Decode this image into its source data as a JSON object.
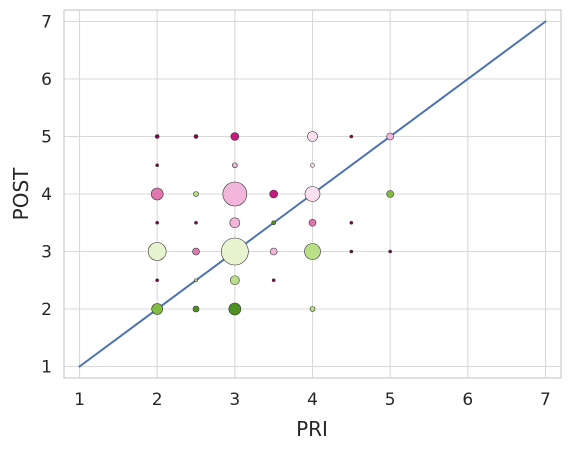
{
  "chart_data": {
    "type": "scatter",
    "xlabel": "PRI",
    "ylabel": "POST",
    "xlim": [
      0.8,
      7.2
    ],
    "ylim": [
      0.8,
      7.2
    ],
    "xticks": [
      "1",
      "2",
      "3",
      "4",
      "5",
      "6",
      "7"
    ],
    "yticks": [
      "1",
      "2",
      "3",
      "4",
      "5",
      "6",
      "7"
    ],
    "grid": true,
    "reference_line": {
      "x": [
        1,
        7
      ],
      "y": [
        1,
        7
      ],
      "color": "#4c72b0"
    },
    "colors": {
      "magenta_dark": "#8e0152",
      "magenta": "#c51b7d",
      "pink": "#de77ae",
      "light_pink": "#f1b6da",
      "pale_pink": "#fde0ef",
      "pale_green": "#e6f5d0",
      "light_green": "#b8e186",
      "green": "#7fbc41",
      "dark_green": "#4d9221"
    },
    "points": [
      {
        "x": 2,
        "y": 5,
        "size": 2,
        "color": "#8e0152"
      },
      {
        "x": 2.5,
        "y": 5,
        "size": 2,
        "color": "#8e0152"
      },
      {
        "x": 3,
        "y": 5,
        "size": 4,
        "color": "#c51b7d"
      },
      {
        "x": 4,
        "y": 5,
        "size": 5,
        "color": "#fde0ef"
      },
      {
        "x": 4.5,
        "y": 5,
        "size": 1.5,
        "color": "#8e0152"
      },
      {
        "x": 5,
        "y": 5,
        "size": 3.5,
        "color": "#f1b6da"
      },
      {
        "x": 2,
        "y": 4.5,
        "size": 1.5,
        "color": "#8e0152"
      },
      {
        "x": 3,
        "y": 4.5,
        "size": 2.5,
        "color": "#f1b6da"
      },
      {
        "x": 4,
        "y": 4.5,
        "size": 2,
        "color": "#fde0ef"
      },
      {
        "x": 2,
        "y": 4,
        "size": 6,
        "color": "#de77ae"
      },
      {
        "x": 2.5,
        "y": 4,
        "size": 2.5,
        "color": "#b8e186"
      },
      {
        "x": 3,
        "y": 4,
        "size": 12,
        "color": "#f1b6da"
      },
      {
        "x": 3.5,
        "y": 4,
        "size": 4,
        "color": "#c51b7d"
      },
      {
        "x": 4,
        "y": 4,
        "size": 7.5,
        "color": "#fde0ef"
      },
      {
        "x": 5,
        "y": 4,
        "size": 3.5,
        "color": "#7fbc41"
      },
      {
        "x": 2,
        "y": 3.5,
        "size": 1.5,
        "color": "#8e0152"
      },
      {
        "x": 2.5,
        "y": 3.5,
        "size": 1.5,
        "color": "#8e0152"
      },
      {
        "x": 3,
        "y": 3.5,
        "size": 5,
        "color": "#f1b6da"
      },
      {
        "x": 3.5,
        "y": 3.5,
        "size": 2,
        "color": "#4d9221"
      },
      {
        "x": 4,
        "y": 3.5,
        "size": 3.5,
        "color": "#de77ae"
      },
      {
        "x": 4.5,
        "y": 3.5,
        "size": 1.5,
        "color": "#8e0152"
      },
      {
        "x": 2,
        "y": 3,
        "size": 9,
        "color": "#e6f5d0"
      },
      {
        "x": 2.5,
        "y": 3,
        "size": 3.5,
        "color": "#de77ae"
      },
      {
        "x": 3,
        "y": 3,
        "size": 13.5,
        "color": "#e6f5d0"
      },
      {
        "x": 3.5,
        "y": 3,
        "size": 3.5,
        "color": "#f1b6da"
      },
      {
        "x": 4,
        "y": 3,
        "size": 8,
        "color": "#b8e186"
      },
      {
        "x": 4.5,
        "y": 3,
        "size": 1.5,
        "color": "#8e0152"
      },
      {
        "x": 5,
        "y": 3,
        "size": 1.5,
        "color": "#8e0152"
      },
      {
        "x": 2,
        "y": 2.5,
        "size": 1.5,
        "color": "#8e0152"
      },
      {
        "x": 2.5,
        "y": 2.5,
        "size": 1.5,
        "color": "#b8e186"
      },
      {
        "x": 3,
        "y": 2.5,
        "size": 4.5,
        "color": "#b8e186"
      },
      {
        "x": 3.5,
        "y": 2.5,
        "size": 1.5,
        "color": "#8e0152"
      },
      {
        "x": 2,
        "y": 2,
        "size": 5.5,
        "color": "#7fbc41"
      },
      {
        "x": 2.5,
        "y": 2,
        "size": 3,
        "color": "#4d9221"
      },
      {
        "x": 3,
        "y": 2,
        "size": 6,
        "color": "#4d9221"
      },
      {
        "x": 4,
        "y": 2,
        "size": 2.5,
        "color": "#b8e186"
      }
    ]
  }
}
